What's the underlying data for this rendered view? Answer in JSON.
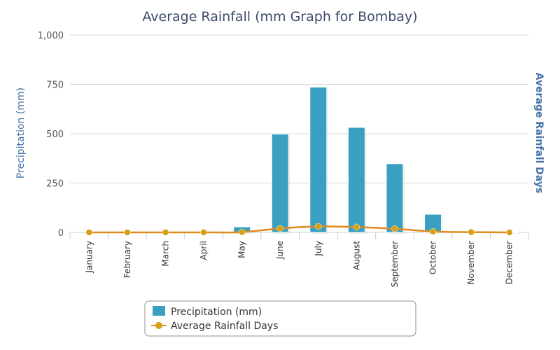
{
  "chart_data": {
    "type": "bar",
    "title": "Average Rainfall (mm Graph for Bombay)",
    "ylabel": "Precipitation (mm)",
    "ylabel_right": "Average Rainfall Days",
    "categories": [
      "January",
      "February",
      "March",
      "April",
      "May",
      "June",
      "July",
      "August",
      "September",
      "October",
      "November",
      "December"
    ],
    "ylim": [
      0,
      1000
    ],
    "yticks": [
      0,
      250,
      500,
      750,
      1000
    ],
    "ytick_labels": [
      "0",
      "250",
      "500",
      "750",
      "1,000"
    ],
    "grid": true,
    "legend_position": "bottom-center",
    "series": [
      {
        "name": "Precipitation (mm)",
        "type": "bar",
        "color": "#3aa0c2",
        "values": [
          0,
          0,
          0,
          0,
          28,
          498,
          736,
          532,
          348,
          92,
          0,
          3
        ]
      },
      {
        "name": "Average Rainfall Days",
        "type": "line",
        "color": "#d4a017",
        "line_color": "#e08a1e",
        "values": [
          0.1,
          0.1,
          0.1,
          0.1,
          1,
          14,
          21,
          19,
          13,
          3,
          1,
          0.1
        ],
        "ylim": [
          0,
          700
        ]
      }
    ]
  }
}
